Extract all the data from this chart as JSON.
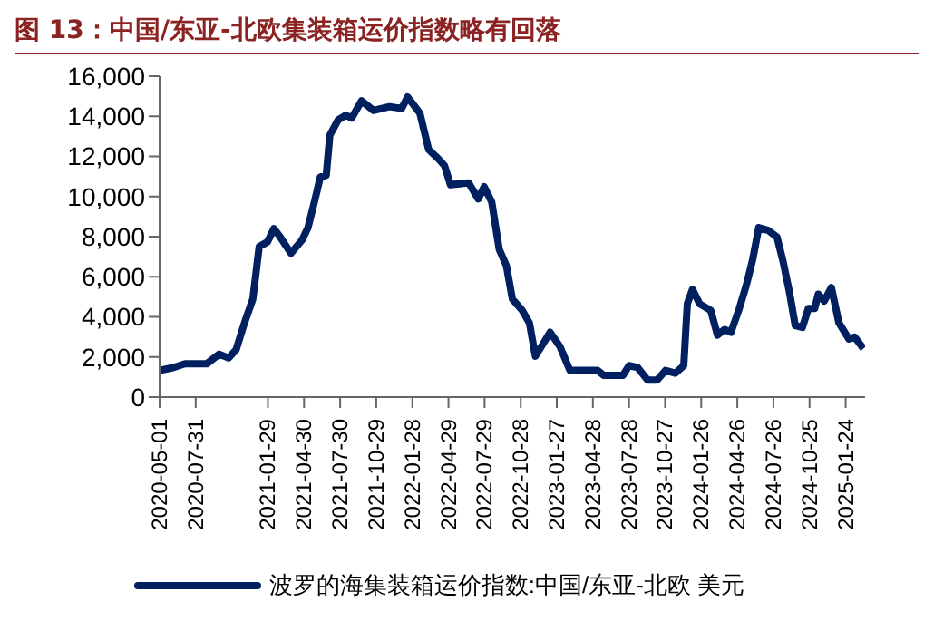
{
  "chart_data": {
    "type": "line",
    "title": "图 13：中国/东亚-北欧集装箱运价指数略有回落",
    "x": [
      "2020-05-01",
      "2020-06-04",
      "2020-07-04",
      "2020-08-28",
      "2020-09-28",
      "2020-10-22",
      "2020-11-10",
      "2020-12-01",
      "2020-12-22",
      "2021-01-07",
      "2021-01-28",
      "2021-02-13",
      "2021-03-01",
      "2021-03-28",
      "2021-04-25",
      "2021-05-10",
      "2021-05-28",
      "2021-06-10",
      "2021-06-25",
      "2021-07-04",
      "2021-07-25",
      "2021-08-13",
      "2021-08-28",
      "2021-09-22",
      "2021-10-22",
      "2021-12-01",
      "2022-01-01",
      "2022-01-16",
      "2022-02-16",
      "2022-03-10",
      "2022-04-04",
      "2022-04-19",
      "2022-05-04",
      "2022-06-19",
      "2022-07-13",
      "2022-07-28",
      "2022-08-16",
      "2022-09-04",
      "2022-09-22",
      "2022-10-07",
      "2022-11-01",
      "2022-11-19",
      "2022-12-04",
      "2022-12-22",
      "2023-01-10",
      "2023-02-04",
      "2023-03-01",
      "2023-03-25",
      "2023-05-10",
      "2023-05-25",
      "2023-07-13",
      "2023-07-28",
      "2023-08-19",
      "2023-09-13",
      "2023-10-07",
      "2023-10-28",
      "2023-11-22",
      "2023-12-13",
      "2023-12-22",
      "2024-01-04",
      "2024-01-22",
      "2024-02-19",
      "2024-03-07",
      "2024-03-25",
      "2024-04-10",
      "2024-05-01",
      "2024-05-19",
      "2024-06-04",
      "2024-06-19",
      "2024-07-13",
      "2024-08-04",
      "2024-08-19",
      "2024-09-04",
      "2024-09-19",
      "2024-10-07",
      "2024-10-22",
      "2024-11-07",
      "2024-11-16",
      "2024-12-01",
      "2024-12-19",
      "2025-01-07",
      "2025-02-01",
      "2025-02-16",
      "2025-03-10"
    ],
    "series": [
      {
        "name": "波罗的海集装箱运价指数:中国/东亚-北欧 美元",
        "color": "#002060",
        "values": [
          1330,
          1470,
          1660,
          1660,
          2140,
          1950,
          2370,
          3700,
          4890,
          7500,
          7740,
          8400,
          7980,
          7170,
          7830,
          8450,
          9880,
          10970,
          11060,
          13060,
          13820,
          14050,
          13910,
          14770,
          14290,
          14480,
          14390,
          14960,
          14150,
          12350,
          11870,
          11540,
          10590,
          10680,
          9880,
          10490,
          9730,
          7360,
          6550,
          4890,
          4320,
          3700,
          2040,
          2610,
          3230,
          2520,
          1330,
          1330,
          1330,
          1090,
          1090,
          1570,
          1470,
          850,
          850,
          1330,
          1190,
          1570,
          4650,
          5370,
          4650,
          4320,
          3090,
          3370,
          3230,
          4420,
          5600,
          6880,
          8450,
          8310,
          7980,
          6790,
          5270,
          3560,
          3470,
          4420,
          4420,
          5130,
          4790,
          5460,
          3700,
          2900,
          2990,
          2420
        ]
      }
    ],
    "xlim": [
      "2020-05-01",
      "2025-03-14"
    ],
    "xticks": [
      "2020-05-01",
      "2020-07-31",
      "2021-01-29",
      "2021-04-30",
      "2021-07-30",
      "2021-10-29",
      "2022-01-28",
      "2022-04-29",
      "2022-07-29",
      "2022-10-28",
      "2023-01-27",
      "2023-04-28",
      "2023-07-28",
      "2023-10-27",
      "2024-01-26",
      "2024-04-26",
      "2024-07-26",
      "2024-10-25",
      "2025-01-24"
    ],
    "ylim": [
      0,
      16000
    ],
    "yticks": [
      0,
      {
        "value": 2000,
        "label": "2,000"
      },
      {
        "value": 4000,
        "label": "4,000"
      },
      {
        "value": 6000,
        "label": "6,000"
      },
      {
        "value": 8000,
        "label": "8,000"
      },
      {
        "value": 10000,
        "label": "10,000"
      },
      {
        "value": 12000,
        "label": "12,000"
      },
      {
        "value": 14000,
        "label": "14,000"
      },
      {
        "value": 16000,
        "label": "16,000"
      }
    ],
    "grid": false,
    "legend": "bottom",
    "marker": "none",
    "line_style": "solid"
  }
}
